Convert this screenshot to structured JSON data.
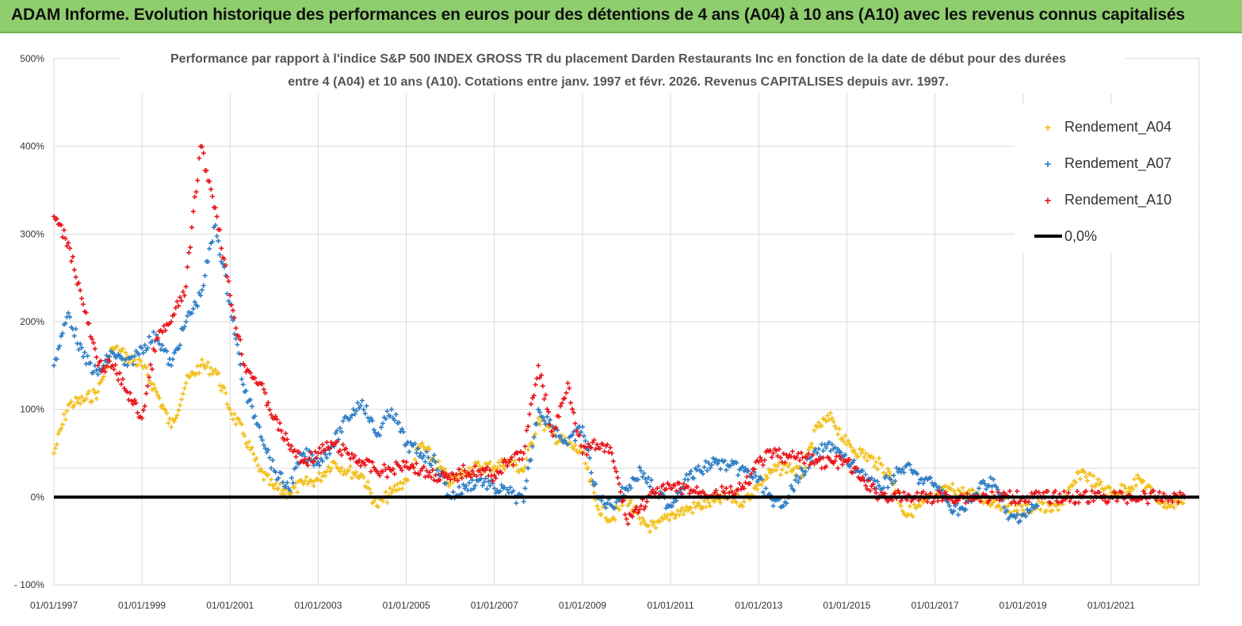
{
  "banner": {
    "title": "ADAM Informe. Evolution historique des performances en euros pour des détentions de 4 ans (A04) à 10 ans (A10) avec les revenus connus capitalisés"
  },
  "chart_data": {
    "type": "scatter",
    "subtitle_line1": "Performance par rapport à l'indice S&P 500 INDEX GROSS TR  du placement Darden Restaurants Inc en fonction de la date de début pour des durées",
    "subtitle_line2": "entre 4 (A04) et 10 ans (A10). Cotations entre janv. 1997 et févr. 2026. Revenus CAPITALISES depuis avr. 1997.",
    "xlim": [
      "1997-01-01",
      "2023-01-01"
    ],
    "ylim": [
      -100,
      500
    ],
    "y_ticks": [
      "- 100%",
      "0%",
      "100%",
      "200%",
      "300%",
      "400%",
      "500%"
    ],
    "x_ticks": [
      "01/01/1997",
      "01/01/1999",
      "01/01/2001",
      "01/01/2003",
      "01/01/2005",
      "01/01/2007",
      "01/01/2009",
      "01/01/2011",
      "01/01/2013",
      "01/01/2015",
      "01/01/2017",
      "01/01/2019",
      "01/01/2021"
    ],
    "grid": true,
    "legend_position": "top-right",
    "reference_line": {
      "name": "0,0%",
      "value": 0,
      "color": "#000000"
    },
    "series": [
      {
        "name": "Rendement_A04",
        "color": "#f2bf1a",
        "x": [
          "1997-01-01",
          "1997-05-01",
          "1997-09-01",
          "1998-01-01",
          "1998-05-01",
          "1998-09-01",
          "1999-01-01",
          "1999-05-01",
          "1999-09-01",
          "2000-01-01",
          "2000-05-01",
          "2000-09-01",
          "2001-01-01",
          "2001-05-01",
          "2001-09-01",
          "2002-01-01",
          "2002-05-01",
          "2002-09-01",
          "2003-01-01",
          "2003-05-01",
          "2003-09-01",
          "2004-01-01",
          "2004-05-01",
          "2004-09-01",
          "2005-01-01",
          "2005-05-01",
          "2005-09-01",
          "2006-01-01",
          "2006-05-01",
          "2006-09-01",
          "2007-01-01",
          "2007-05-01",
          "2007-09-01",
          "2008-01-01",
          "2008-05-01",
          "2008-09-01",
          "2009-01-01",
          "2009-05-01",
          "2009-09-01",
          "2010-01-01",
          "2010-05-01",
          "2010-09-01",
          "2011-01-01",
          "2011-05-01",
          "2011-09-01",
          "2012-01-01",
          "2012-05-01",
          "2012-09-01",
          "2013-01-01",
          "2013-05-01",
          "2013-09-01",
          "2014-01-01",
          "2014-05-01",
          "2014-09-01",
          "2015-01-01",
          "2015-05-01",
          "2015-09-01",
          "2016-01-01",
          "2016-05-01",
          "2016-09-01",
          "2017-01-01",
          "2017-05-01",
          "2017-09-01",
          "2018-01-01",
          "2018-05-01",
          "2018-09-01",
          "2019-01-01",
          "2019-05-01",
          "2019-09-01",
          "2020-01-01",
          "2020-05-01",
          "2020-09-01",
          "2021-01-01",
          "2021-05-01",
          "2021-09-01",
          "2022-01-01",
          "2022-05-01",
          "2022-09-01"
        ],
        "values": [
          50,
          105,
          110,
          120,
          170,
          160,
          150,
          120,
          80,
          130,
          150,
          145,
          100,
          70,
          30,
          10,
          5,
          15,
          20,
          40,
          30,
          25,
          -10,
          5,
          20,
          60,
          40,
          15,
          30,
          35,
          35,
          40,
          30,
          90,
          70,
          60,
          50,
          -10,
          -25,
          0,
          -30,
          -35,
          -20,
          -15,
          -10,
          -5,
          0,
          -5,
          15,
          30,
          35,
          25,
          80,
          90,
          60,
          50,
          40,
          25,
          -20,
          -10,
          0,
          10,
          5,
          0,
          -5,
          -10,
          -15,
          -10,
          -15,
          0,
          30,
          15,
          5,
          10,
          20,
          0,
          -10,
          0
        ],
        "marker": "+"
      },
      {
        "name": "Rendement_A07",
        "color": "#2e7dc4",
        "x": [
          "1997-01-01",
          "1997-05-01",
          "1997-09-01",
          "1998-01-01",
          "1998-05-01",
          "1998-09-01",
          "1999-01-01",
          "1999-05-01",
          "1999-09-01",
          "2000-01-01",
          "2000-05-01",
          "2000-09-01",
          "2001-01-01",
          "2001-05-01",
          "2001-09-01",
          "2002-01-01",
          "2002-05-01",
          "2002-09-01",
          "2003-01-01",
          "2003-05-01",
          "2003-09-01",
          "2004-01-01",
          "2004-05-01",
          "2004-09-01",
          "2005-01-01",
          "2005-05-01",
          "2005-09-01",
          "2006-01-01",
          "2006-05-01",
          "2006-09-01",
          "2007-01-01",
          "2007-05-01",
          "2007-09-01",
          "2008-01-01",
          "2008-05-01",
          "2008-09-01",
          "2009-01-01",
          "2009-05-01",
          "2009-09-01",
          "2010-01-01",
          "2010-05-01",
          "2010-09-01",
          "2011-01-01",
          "2011-05-01",
          "2011-09-01",
          "2012-01-01",
          "2012-05-01",
          "2012-09-01",
          "2013-01-01",
          "2013-05-01",
          "2013-09-01",
          "2014-01-01",
          "2014-05-01",
          "2014-09-01",
          "2015-01-01",
          "2015-05-01",
          "2015-09-01",
          "2016-01-01",
          "2016-05-01",
          "2016-09-01",
          "2017-01-01",
          "2017-05-01",
          "2017-09-01",
          "2018-01-01",
          "2018-05-01",
          "2018-09-01",
          "2019-01-01",
          "2019-05-01"
        ],
        "values": [
          150,
          210,
          160,
          140,
          165,
          150,
          170,
          185,
          150,
          200,
          230,
          310,
          220,
          120,
          80,
          30,
          10,
          50,
          40,
          60,
          90,
          110,
          70,
          100,
          60,
          50,
          40,
          0,
          10,
          20,
          10,
          5,
          -5,
          100,
          80,
          60,
          80,
          0,
          -10,
          10,
          30,
          5,
          -10,
          20,
          30,
          40,
          35,
          30,
          20,
          -10,
          0,
          30,
          50,
          60,
          40,
          30,
          10,
          20,
          35,
          20,
          15,
          -10,
          -15,
          10,
          20,
          -25,
          -20,
          -10
        ],
        "marker": "+"
      },
      {
        "name": "Rendement_A10",
        "color": "#e8141b",
        "x": [
          "1997-01-01",
          "1997-05-01",
          "1997-09-01",
          "1998-01-01",
          "1998-05-01",
          "1998-09-01",
          "1999-01-01",
          "1999-05-01",
          "1999-09-01",
          "2000-01-01",
          "2000-05-01",
          "2000-09-01",
          "2001-01-01",
          "2001-05-01",
          "2001-09-01",
          "2002-01-01",
          "2002-05-01",
          "2002-09-01",
          "2003-01-01",
          "2003-05-01",
          "2003-09-01",
          "2004-01-01",
          "2004-05-01",
          "2004-09-01",
          "2005-01-01",
          "2005-05-01",
          "2005-09-01",
          "2006-01-01",
          "2006-05-01",
          "2006-09-01",
          "2007-01-01",
          "2007-05-01",
          "2007-09-01",
          "2008-01-01",
          "2008-05-01",
          "2008-09-01",
          "2009-01-01",
          "2009-05-01",
          "2009-09-01",
          "2010-01-01",
          "2010-05-01",
          "2010-09-01",
          "2011-01-01",
          "2011-05-01",
          "2011-09-01",
          "2012-01-01",
          "2012-05-01",
          "2012-09-01",
          "2013-01-01",
          "2013-05-01",
          "2013-09-01",
          "2014-01-01",
          "2014-05-01",
          "2014-09-01",
          "2015-01-01",
          "2015-05-01",
          "2015-09-01",
          "2016-01-01",
          "2016-05-01",
          "2016-09-01",
          "2017-01-01",
          "2017-05-01",
          "2017-09-01",
          "2018-01-01",
          "2018-05-01",
          "2018-09-01",
          "2019-01-01",
          "2019-05-01",
          "2019-09-01",
          "2020-01-01",
          "2020-05-01",
          "2020-09-01",
          "2021-01-01",
          "2021-05-01",
          "2021-09-01",
          "2022-01-01",
          "2022-05-01",
          "2022-09-01"
        ],
        "values": [
          320,
          290,
          220,
          150,
          150,
          120,
          90,
          180,
          200,
          240,
          400,
          330,
          230,
          150,
          130,
          90,
          60,
          40,
          50,
          60,
          50,
          40,
          30,
          30,
          40,
          30,
          25,
          20,
          30,
          30,
          25,
          40,
          50,
          150,
          70,
          130,
          50,
          60,
          50,
          -25,
          -10,
          5,
          10,
          10,
          5,
          5,
          5,
          10,
          40,
          50,
          45,
          45,
          40,
          40,
          40,
          20,
          5,
          0,
          0,
          0,
          0,
          0,
          0,
          0,
          0,
          0,
          0,
          0,
          0,
          0,
          0,
          0,
          0,
          0,
          0,
          0,
          0,
          0
        ],
        "marker": "+"
      }
    ]
  }
}
